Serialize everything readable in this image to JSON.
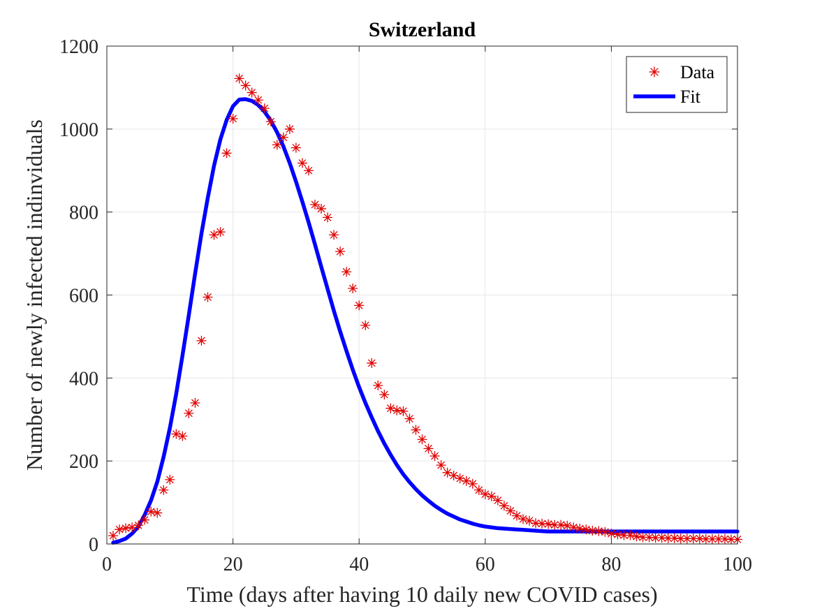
{
  "chart_data": {
    "type": "scatter",
    "title": "Switzerland",
    "xlabel": "Time (days after having 10 daily new COVID cases)",
    "ylabel": "Number of newly infected indinviduals",
    "xlim": [
      0,
      100
    ],
    "ylim": [
      0,
      1200
    ],
    "xticks": [
      0,
      20,
      40,
      60,
      80,
      100
    ],
    "yticks": [
      0,
      200,
      400,
      600,
      800,
      1000,
      1200
    ],
    "grid": true,
    "legend_position": "top-right",
    "colors": {
      "data": "#e00000",
      "fit": "#0000ff",
      "grid": "#e6e6e6",
      "axis": "#262626"
    },
    "series": [
      {
        "name": "Data",
        "kind": "markers",
        "marker": "asterisk",
        "x": [
          1,
          2,
          3,
          4,
          5,
          6,
          7,
          8,
          9,
          10,
          11,
          12,
          13,
          14,
          15,
          16,
          17,
          18,
          19,
          20,
          21,
          22,
          23,
          24,
          25,
          26,
          27,
          28,
          29,
          30,
          31,
          32,
          33,
          34,
          35,
          36,
          37,
          38,
          39,
          40,
          41,
          42,
          43,
          44,
          45,
          46,
          47,
          48,
          49,
          50,
          51,
          52,
          53,
          54,
          55,
          56,
          57,
          58,
          59,
          60,
          61,
          62,
          63,
          64,
          65,
          66,
          67,
          68,
          69,
          70,
          71,
          72,
          73,
          74,
          75,
          76,
          77,
          78,
          79,
          80,
          81,
          82,
          83,
          84,
          85,
          86,
          87,
          88,
          89,
          90,
          91,
          92,
          93,
          94,
          95,
          96,
          97,
          98,
          99,
          100
        ],
        "y": [
          20,
          35,
          38,
          40,
          45,
          58,
          78,
          75,
          130,
          155,
          265,
          260,
          315,
          340,
          490,
          595,
          745,
          752,
          942,
          1025,
          1122,
          1105,
          1088,
          1070,
          1050,
          1018,
          962,
          980,
          1000,
          955,
          918,
          900,
          818,
          808,
          787,
          745,
          705,
          656,
          616,
          575,
          527,
          436,
          382,
          360,
          327,
          322,
          320,
          302,
          275,
          252,
          230,
          212,
          190,
          172,
          165,
          158,
          152,
          145,
          130,
          120,
          115,
          105,
          92,
          80,
          68,
          60,
          56,
          50,
          49,
          48,
          46,
          46,
          44,
          40,
          37,
          35,
          32,
          31,
          29,
          25,
          23,
          21,
          21,
          18,
          16,
          16,
          15,
          15,
          14,
          14,
          13,
          13,
          13,
          13,
          12,
          12,
          12,
          12,
          11,
          11
        ]
      },
      {
        "name": "Fit",
        "kind": "line",
        "x": [
          1,
          2,
          3,
          4,
          5,
          6,
          7,
          8,
          9,
          10,
          11,
          12,
          13,
          14,
          15,
          16,
          17,
          18,
          19,
          20,
          21,
          22,
          23,
          24,
          25,
          26,
          27,
          28,
          29,
          30,
          31,
          32,
          33,
          34,
          35,
          36,
          37,
          38,
          39,
          40,
          41,
          42,
          43,
          44,
          45,
          46,
          47,
          48,
          49,
          50,
          51,
          52,
          53,
          54,
          55,
          56,
          57,
          58,
          59,
          60,
          61,
          62,
          63,
          64,
          65,
          66,
          67,
          68,
          69,
          70,
          71,
          72,
          73,
          74,
          75,
          76,
          77,
          78,
          79,
          80,
          81,
          82,
          83,
          84,
          85,
          86,
          87,
          88,
          89,
          90,
          91,
          92,
          93,
          94,
          95,
          96,
          97,
          98,
          99,
          100
        ],
        "y": [
          3,
          7,
          13,
          25,
          42,
          70,
          105,
          150,
          210,
          280,
          362,
          455,
          552,
          652,
          748,
          834,
          912,
          975,
          1022,
          1055,
          1071,
          1072,
          1068,
          1058,
          1042,
          1020,
          992,
          958,
          918,
          873,
          825,
          775,
          722,
          668,
          615,
          562,
          512,
          465,
          420,
          378,
          340,
          305,
          272,
          242,
          215,
          190,
          168,
          149,
          132,
          117,
          104,
          92,
          82,
          73,
          66,
          59,
          54,
          49,
          45,
          42,
          40,
          38,
          37,
          36,
          35,
          34,
          33,
          32,
          31,
          30,
          30,
          30,
          30,
          30,
          30,
          30,
          30,
          30,
          30,
          30,
          30,
          30,
          30,
          30,
          30,
          30,
          30,
          30,
          30,
          30,
          30,
          30,
          30,
          30,
          30,
          30,
          30,
          30,
          30,
          30
        ]
      }
    ]
  }
}
